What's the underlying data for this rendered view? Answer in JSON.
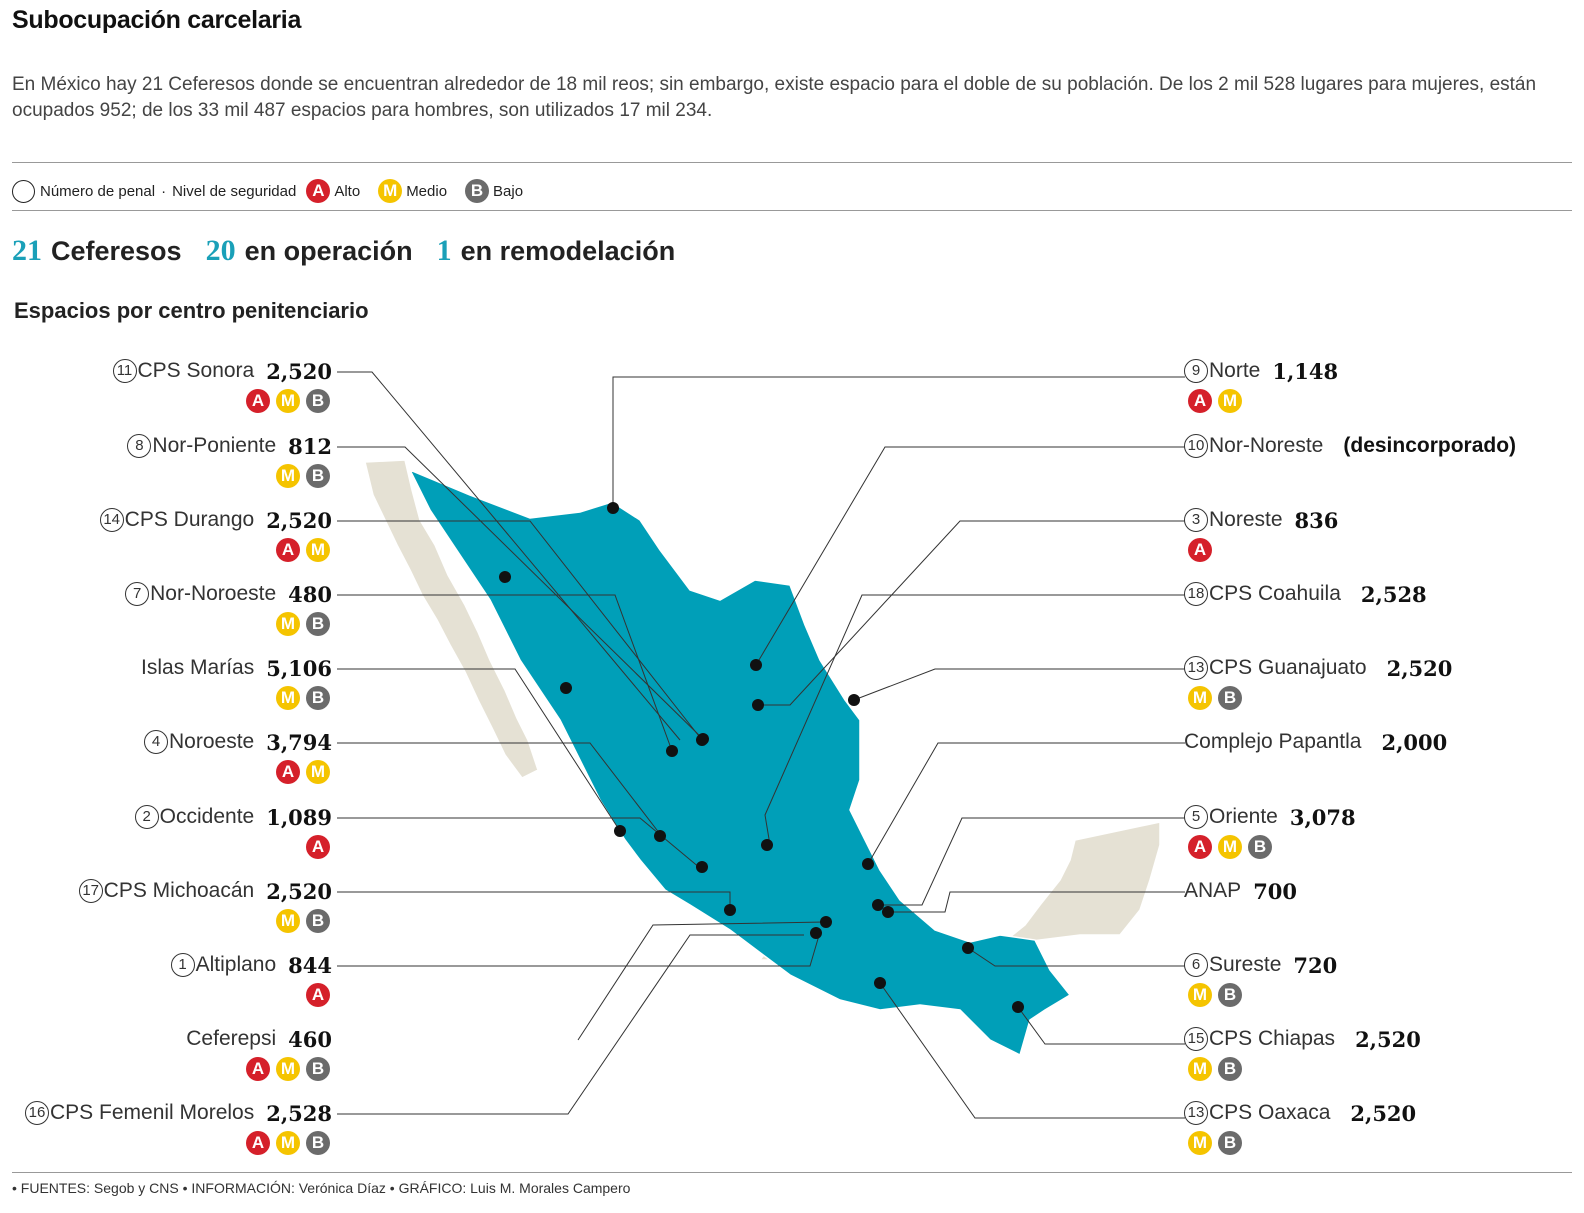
{
  "title": "Subocupación carcelaria",
  "intro": "En México hay 21 Ceferesos donde se encuentran alrededor de 18 mil reos; sin embargo, existe espacio para el doble de su población. De los 2 mil 528 lugares para mujeres, están ocupados 952; de los 33 mil 487 espacios para hombres, son utilizados 17 mil 234.",
  "legend": {
    "number_label": "Número de penal",
    "level_label": "Nivel de seguridad",
    "alto": "Alto",
    "medio": "Medio",
    "bajo": "Bajo"
  },
  "badge_letters": {
    "A": "A",
    "M": "M",
    "B": "B"
  },
  "stats": {
    "total_num": "21",
    "total_label": "Ceferesos",
    "operating_num": "20",
    "operating_label": "en operación",
    "remodel_num": "1",
    "remodel_label": "en remodelación"
  },
  "subtitle": "Espacios por centro penitenciario",
  "colors": {
    "operating_state": "#009fb8",
    "other_state": "#e5e1d4",
    "accent": "#1aa0b8",
    "alto": "#d5202a",
    "medio": "#f5c400",
    "bajo": "#6b6b6b"
  },
  "centers": [
    {
      "num": "11",
      "name": "CPS Sonora",
      "spaces": "2,520",
      "levels": [
        "A",
        "M",
        "B"
      ]
    },
    {
      "num": "8",
      "name": "Nor-Poniente",
      "spaces": "812",
      "levels": [
        "M",
        "B"
      ]
    },
    {
      "num": "14",
      "name": "CPS Durango",
      "spaces": "2,520",
      "levels": [
        "A",
        "M"
      ]
    },
    {
      "num": "7",
      "name": "Nor-Noroeste",
      "spaces": "480",
      "levels": [
        "M",
        "B"
      ]
    },
    {
      "num": "",
      "name": "Islas Marías",
      "spaces": "5,106",
      "levels": [
        "M",
        "B"
      ]
    },
    {
      "num": "4",
      "name": "Noroeste",
      "spaces": "3,794",
      "levels": [
        "A",
        "M"
      ]
    },
    {
      "num": "2",
      "name": "Occidente",
      "spaces": "1,089",
      "levels": [
        "A"
      ]
    },
    {
      "num": "17",
      "name": "CPS Michoacán",
      "spaces": "2,520",
      "levels": [
        "M",
        "B"
      ]
    },
    {
      "num": "1",
      "name": "Altiplano",
      "spaces": "844",
      "levels": [
        "A"
      ]
    },
    {
      "num": "",
      "name": "Ceferepsi",
      "spaces": "460",
      "levels": [
        "A",
        "M",
        "B"
      ]
    },
    {
      "num": "16",
      "name": "CPS Femenil Morelos",
      "spaces": "2,528",
      "levels": [
        "A",
        "M",
        "B"
      ]
    },
    {
      "num": "9",
      "name": "Norte",
      "spaces": "1,148",
      "levels": [
        "A",
        "M"
      ]
    },
    {
      "num": "10",
      "name": "Nor-Noreste",
      "note": "(desincorporado)",
      "levels": []
    },
    {
      "num": "3",
      "name": "Noreste",
      "spaces": "836",
      "levels": [
        "A"
      ]
    },
    {
      "num": "18",
      "name": "CPS Coahuila",
      "spaces": "2,528",
      "levels": []
    },
    {
      "num": "13",
      "name": "CPS Guanajuato",
      "spaces": "2,520",
      "levels": [
        "M",
        "B"
      ]
    },
    {
      "num": "",
      "name": "Complejo Papantla",
      "spaces": "2,000",
      "levels": []
    },
    {
      "num": "5",
      "name": "Oriente",
      "spaces": "3,078",
      "levels": [
        "A",
        "M",
        "B"
      ]
    },
    {
      "num": "",
      "name": "ANAP",
      "spaces": "700",
      "levels": []
    },
    {
      "num": "6",
      "name": "Sureste",
      "spaces": "720",
      "levels": [
        "M",
        "B"
      ]
    },
    {
      "num": "15",
      "name": "CPS Chiapas",
      "spaces": "2,520",
      "levels": [
        "M",
        "B"
      ]
    },
    {
      "num": "13",
      "name": "CPS Oaxaca",
      "spaces": "2,520",
      "levels": [
        "M",
        "B"
      ]
    }
  ],
  "footer": "• FUENTES: Segob y CNS • INFORMACIÓN: Verónica Díaz • GRÁFICO: Luis M. Morales Campero"
}
